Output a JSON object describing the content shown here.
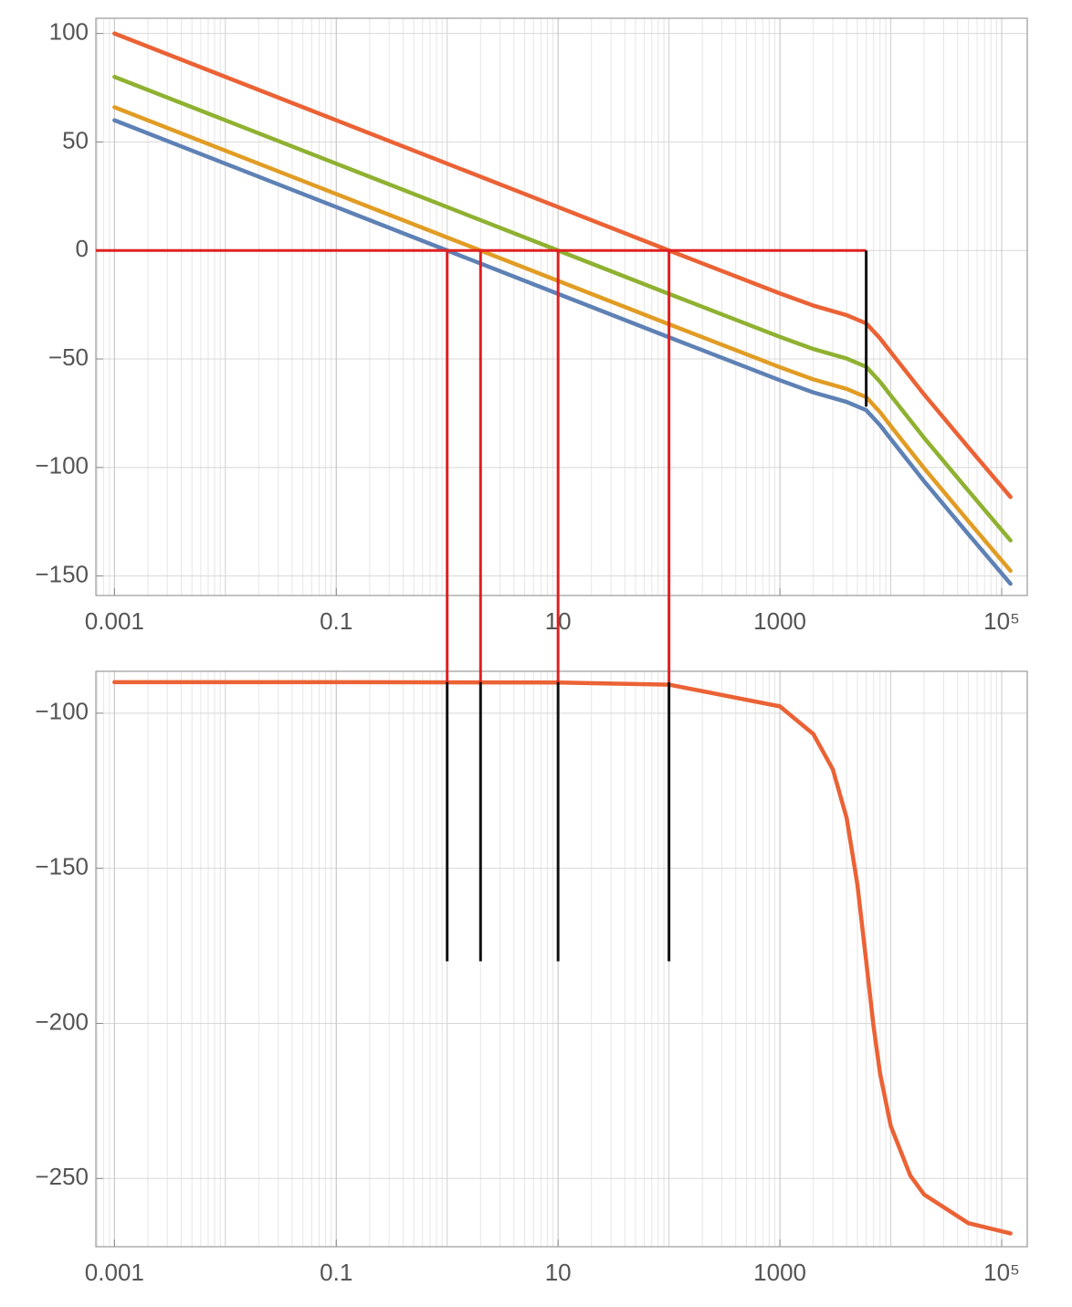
{
  "chart_data": [
    {
      "type": "line",
      "xscale": "log",
      "grid": true,
      "xlim": [
        0.00068,
        170000
      ],
      "ylim": [
        -159,
        107
      ],
      "xticks": [
        0.001,
        0.1,
        10,
        1000,
        {
          "value": 100000,
          "label": "10⁵"
        }
      ],
      "yticks": [
        100,
        50,
        0,
        {
          "value": -50,
          "label": "−50"
        },
        {
          "value": -100,
          "label": "−100"
        },
        {
          "value": -150,
          "label": "−150"
        }
      ],
      "x": [
        0.001,
        0.01,
        0.1,
        1,
        10,
        100,
        1000,
        2000,
        4000,
        6000,
        8000,
        10000,
        20000,
        50000,
        120000
      ],
      "series": [
        {
          "color": "#eb6235",
          "values": [
            100,
            80,
            60,
            40,
            20,
            0,
            -19.8,
            -25.4,
            -29.8,
            -33.6,
            -40.5,
            -46.9,
            -66.4,
            -90.7,
            -113.6
          ]
        },
        {
          "color": "#8fb131",
          "values": [
            80,
            60,
            40,
            20,
            0,
            -20,
            -39.8,
            -45.4,
            -49.8,
            -53.6,
            -60.5,
            -66.9,
            -86.4,
            -110.7,
            -133.6
          ]
        },
        {
          "color": "#e19c24",
          "values": [
            66,
            46,
            26,
            6,
            -14,
            -34,
            -53.8,
            -59.4,
            -63.8,
            -67.6,
            -74.5,
            -80.9,
            -100.4,
            -124.7,
            -147.6
          ]
        },
        {
          "color": "#5e81b5",
          "values": [
            60,
            40,
            20,
            0,
            -20,
            -40,
            -59.8,
            -65.4,
            -69.8,
            -73.6,
            -80.5,
            -86.9,
            -106.4,
            -130.7,
            -153.6
          ]
        }
      ],
      "segments": [
        {
          "color": "#e02020",
          "x": [
            0.00068,
            6000
          ],
          "y": [
            0,
            0
          ]
        },
        {
          "color": "#e02020",
          "x": [
            1,
            1
          ],
          "y": [
            0,
            -159
          ]
        },
        {
          "color": "#e02020",
          "x": [
            2,
            2
          ],
          "y": [
            0,
            -159
          ]
        },
        {
          "color": "#e02020",
          "x": [
            10,
            10
          ],
          "y": [
            0,
            -159
          ]
        },
        {
          "color": "#e02020",
          "x": [
            100,
            100
          ],
          "y": [
            0,
            -159
          ]
        },
        {
          "color": "#111111",
          "x": [
            6000,
            6000
          ],
          "y": [
            0,
            -72
          ]
        }
      ]
    },
    {
      "type": "line",
      "xscale": "log",
      "grid": true,
      "xlim": [
        0.00068,
        170000
      ],
      "ylim": [
        -272,
        -86.5
      ],
      "xticks": [
        0.001,
        0.1,
        10,
        1000,
        {
          "value": 100000,
          "label": "10⁵"
        }
      ],
      "yticks": [
        {
          "value": -100,
          "label": "−100"
        },
        {
          "value": -150,
          "label": "−150"
        },
        {
          "value": -200,
          "label": "−200"
        },
        {
          "value": -250,
          "label": "−250"
        }
      ],
      "x": [
        0.001,
        0.1,
        10,
        100,
        1000,
        2000,
        3000,
        4000,
        5000,
        6000,
        7000,
        8000,
        10000,
        15000,
        20000,
        50000,
        120000
      ],
      "series": [
        {
          "color": "#eb6235",
          "values": [
            -90,
            -90,
            -90.1,
            -90.8,
            -97.8,
            -106.7,
            -118.1,
            -133.8,
            -155.3,
            -180,
            -201.1,
            -216.1,
            -233.1,
            -249.1,
            -255.2,
            -264.4,
            -267.7
          ]
        }
      ],
      "segments": [
        {
          "color": "#e02020",
          "x": [
            1,
            1
          ],
          "y": [
            -86.5,
            -90
          ]
        },
        {
          "color": "#e02020",
          "x": [
            2,
            2
          ],
          "y": [
            -86.5,
            -90
          ]
        },
        {
          "color": "#e02020",
          "x": [
            10,
            10
          ],
          "y": [
            -86.5,
            -90
          ]
        },
        {
          "color": "#e02020",
          "x": [
            100,
            100
          ],
          "y": [
            -86.5,
            -90
          ]
        },
        {
          "color": "#111111",
          "x": [
            1,
            1
          ],
          "y": [
            -90,
            -180
          ]
        },
        {
          "color": "#111111",
          "x": [
            2,
            2
          ],
          "y": [
            -90,
            -180
          ]
        },
        {
          "color": "#111111",
          "x": [
            10,
            10
          ],
          "y": [
            -90,
            -180
          ]
        },
        {
          "color": "#111111",
          "x": [
            100,
            100
          ],
          "y": [
            -90,
            -180
          ]
        }
      ]
    }
  ]
}
